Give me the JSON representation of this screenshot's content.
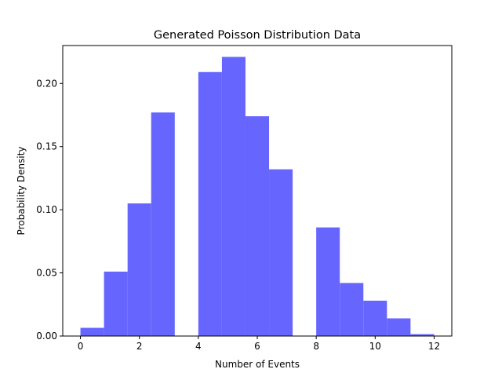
{
  "chart_data": {
    "type": "bar",
    "title": "Generated Poisson Distribution Data",
    "xlabel": "Number of Events",
    "ylabel": "Probability Density",
    "bin_edges": [
      0,
      0.8,
      1.6,
      2.4,
      3.2,
      4.0,
      4.8,
      5.6,
      6.4,
      7.2,
      8.0,
      8.8,
      9.6,
      10.4,
      11.2,
      12.0
    ],
    "values": [
      0.0065,
      0.051,
      0.105,
      0.177,
      0,
      0.209,
      0.221,
      0.174,
      0.132,
      0,
      0.086,
      0.042,
      0.028,
      0.014,
      0.0015
    ],
    "xlim": [
      -0.6,
      12.6
    ],
    "ylim": [
      0,
      0.23
    ],
    "xticks": [
      "0",
      "2",
      "4",
      "6",
      "8",
      "10",
      "12"
    ],
    "yticks": [
      "0.00",
      "0.05",
      "0.10",
      "0.15",
      "0.20"
    ],
    "color": "#6666ff",
    "grid": false
  }
}
